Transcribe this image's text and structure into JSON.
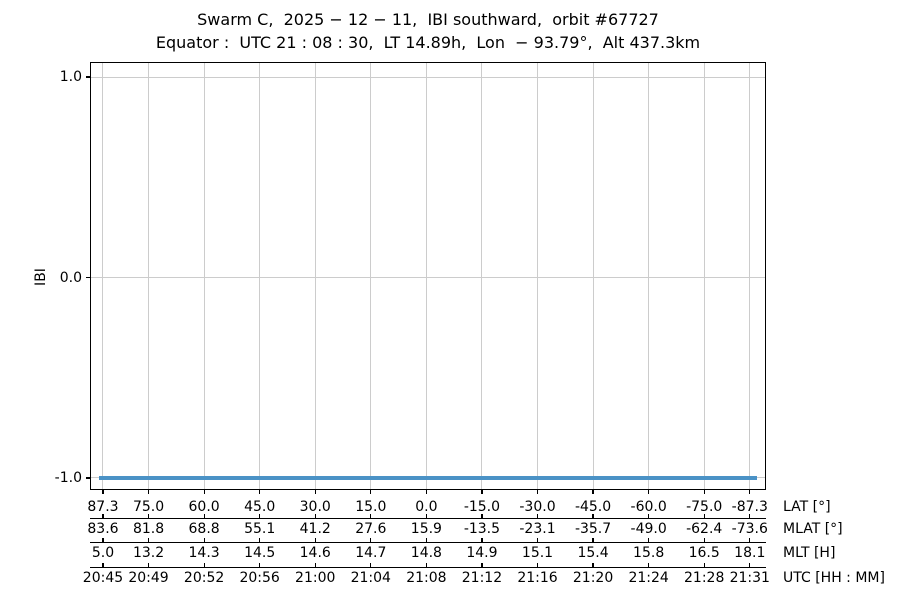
{
  "chart_data": {
    "type": "line",
    "title": "Swarm C,  2025 − 12 − 11,  IBI southward,  orbit #67727",
    "subtitle": "Equator :  UTC 21 : 08 : 30,  LT 14.89h,  Lon  − 93.79°,  Alt 437.3km",
    "ylabel": "IBI",
    "ylim": [
      -1.06,
      1.075
    ],
    "yticks": {
      "labels": [
        "1.0",
        "0.0",
        "-1.0"
      ],
      "values": [
        1.0,
        0.0,
        -1.0
      ]
    },
    "grid": true,
    "legend": null,
    "series": [
      {
        "name": "IBI",
        "y_constant": -1.0,
        "spans_full_x_range": true,
        "description": "IBI index is constant at -1.0 across the entire plotted interval (UTC 20:45 to 21:31)"
      }
    ],
    "x_tick_lat_values": [
      87.3,
      75.0,
      60.0,
      45.0,
      30.0,
      15.0,
      0.0,
      -15.0,
      -30.0,
      -45.0,
      -60.0,
      -75.0,
      -87.3
    ],
    "bottom_axes": [
      {
        "id": "lat",
        "label": "LAT [°]",
        "ticks": [
          "87.3",
          "75.0",
          "60.0",
          "45.0",
          "30.0",
          "15.0",
          "0.0",
          "-15.0",
          "-30.0",
          "-45.0",
          "-60.0",
          "-75.0",
          "-87.3"
        ]
      },
      {
        "id": "mlat",
        "label": "MLAT [°]",
        "ticks": [
          "83.6",
          "81.8",
          "68.8",
          "55.1",
          "41.2",
          "27.6",
          "15.9",
          "-13.5",
          "-23.1",
          "-35.7",
          "-49.0",
          "-62.4",
          "-73.6"
        ]
      },
      {
        "id": "mlt",
        "label": "MLT [H]",
        "ticks": [
          "5.0",
          "13.2",
          "14.3",
          "14.5",
          "14.6",
          "14.7",
          "14.8",
          "14.9",
          "15.1",
          "15.4",
          "15.8",
          "16.5",
          "18.1"
        ]
      },
      {
        "id": "utc",
        "label": "UTC [HH : MM]",
        "ticks": [
          "20:45",
          "20:49",
          "20:52",
          "20:56",
          "21:00",
          "21:04",
          "21:08",
          "21:12",
          "21:16",
          "21:20",
          "21:24",
          "21:28",
          "21:31"
        ]
      }
    ],
    "colors": {
      "line": "#4a92c6",
      "grid": "#cccccc",
      "spine": "#000000",
      "text": "#000000",
      "background": "#ffffff"
    }
  }
}
